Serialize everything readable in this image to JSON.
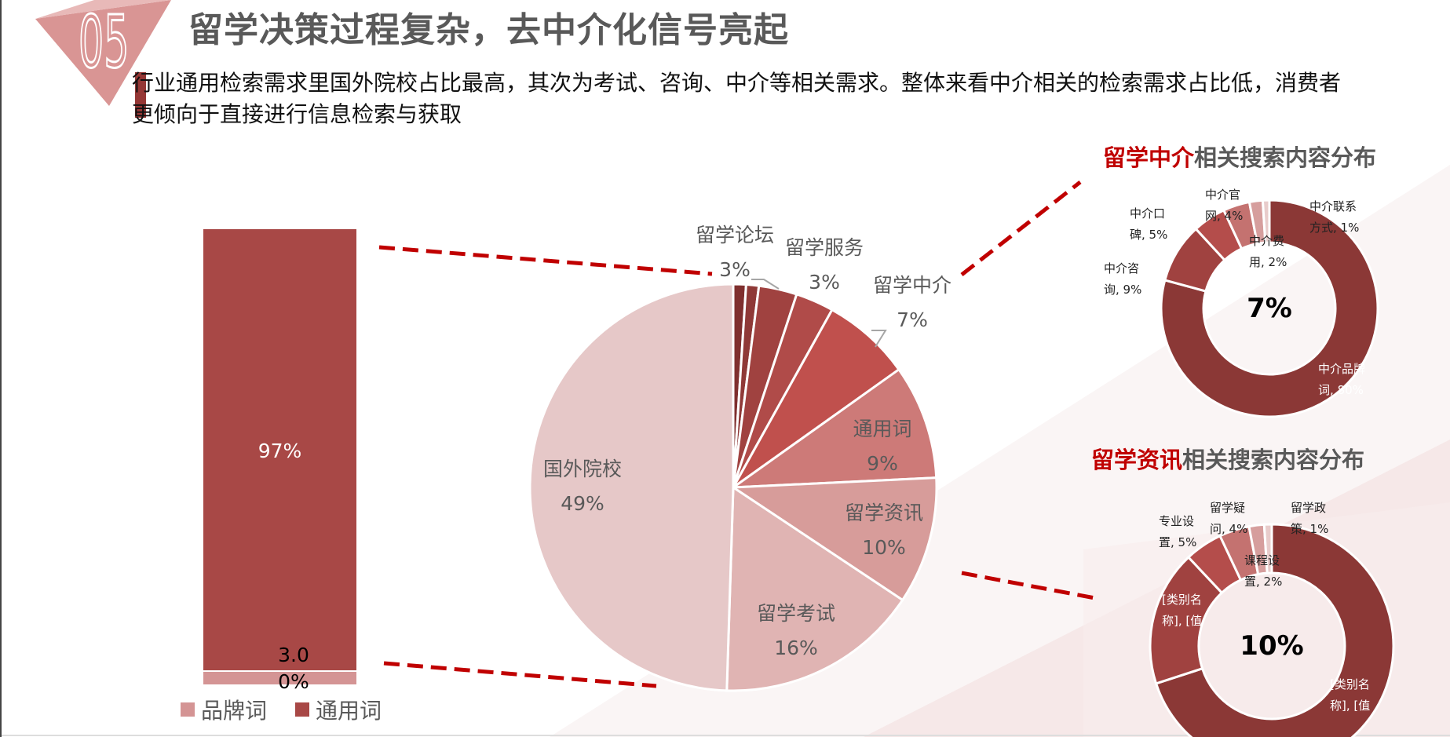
{
  "header": {
    "section_number": "05",
    "title": "留学决策过程复杂，去中介化信号亮起",
    "subtitle": "行业通用检索需求里国外院校占比最高，其次为考试、咨询、中介等相关需求。整体来看中介相关的检索需求占比低，消费者更倾向于直接进行信息检索与获取"
  },
  "colors": {
    "title_gray": "#595959",
    "highlight_red": "#c00000",
    "dark_red": "#8b3836",
    "bar_dark": "#a84846",
    "bar_light": "#d49494",
    "dash_red": "#c00000"
  },
  "chart_data": [
    {
      "type": "bar",
      "stacked": true,
      "categories": [
        ""
      ],
      "series": [
        {
          "name": "品牌词",
          "values": [
            3
          ],
          "color": "#d49494",
          "label": "3.00%"
        },
        {
          "name": "通用词",
          "values": [
            97
          ],
          "color": "#a84846",
          "label": "97%"
        }
      ],
      "legend": "bottom",
      "grid": false
    },
    {
      "type": "pie",
      "start": "top",
      "direction": "clockwise",
      "slices": [
        {
          "name": "",
          "value": 1,
          "pct": "",
          "color": "#7f2f2e"
        },
        {
          "name": "",
          "value": 1,
          "pct": "",
          "color": "#8f3937"
        },
        {
          "name": "留学论坛",
          "value": 3,
          "pct": "3%",
          "color": "#a04240"
        },
        {
          "name": "留学服务",
          "value": 3,
          "pct": "3%",
          "color": "#b04b49"
        },
        {
          "name": "留学中介",
          "value": 7,
          "pct": "7%",
          "color": "#c0504d"
        },
        {
          "name": "通用词",
          "value": 9,
          "pct": "9%",
          "color": "#cd7a78"
        },
        {
          "name": "留学资讯",
          "value": 10,
          "pct": "10%",
          "color": "#d79c9a"
        },
        {
          "name": "留学考试",
          "value": 16,
          "pct": "16%",
          "color": "#e0b4b3"
        },
        {
          "name": "国外院校",
          "value": 49,
          "pct": "49%",
          "color": "#e6c8c8"
        }
      ]
    },
    {
      "type": "pie",
      "donut": true,
      "title_highlight": "留学中介",
      "title_rest": "相关搜索内容分布",
      "center_label": "7%",
      "slices": [
        {
          "label": "中介品牌词, 80%",
          "value": 80,
          "color": "#8b3836"
        },
        {
          "label": "中介咨询, 9%",
          "value": 9,
          "color": "#a04240"
        },
        {
          "label": "中介口碑, 5%",
          "value": 5,
          "color": "#b44d4b"
        },
        {
          "label": "中介官网, 4%",
          "value": 4,
          "color": "#c47270"
        },
        {
          "label": "中介费用, 2%",
          "value": 2,
          "color": "#d69e9d"
        },
        {
          "label": "中介联系方式, 1%",
          "value": 1,
          "color": "#e8cccb"
        }
      ]
    },
    {
      "type": "pie",
      "donut": true,
      "title_highlight": "留学资讯",
      "title_rest": "相关搜索内容分布",
      "center_label": "10%",
      "slices": [
        {
          "label": "[类别名称], [值",
          "value": 70,
          "color": "#8b3836"
        },
        {
          "label": "[类别名称], [值",
          "value": 18,
          "color": "#a04240"
        },
        {
          "label": "专业设置, 5%",
          "value": 5,
          "color": "#b44d4b"
        },
        {
          "label": "留学疑问, 4%",
          "value": 4,
          "color": "#c47270"
        },
        {
          "label": "课程设置, 2%",
          "value": 2,
          "color": "#d69e9d"
        },
        {
          "label": "留学政策, 1%",
          "value": 1,
          "color": "#e8cccb"
        }
      ]
    }
  ]
}
